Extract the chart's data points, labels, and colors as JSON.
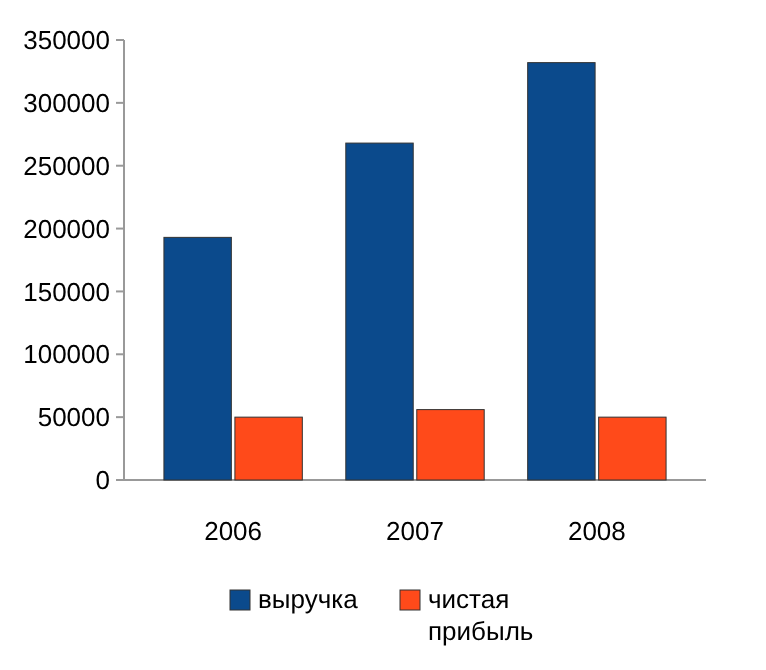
{
  "chart_data": {
    "type": "bar",
    "categories": [
      "2006",
      "2007",
      "2008"
    ],
    "series": [
      {
        "name": "выручка",
        "color": "#0b4a8c",
        "values": [
          193000,
          268000,
          332000
        ]
      },
      {
        "name": "чистая прибыль",
        "color": "#ff4a1a",
        "values": [
          50000,
          56000,
          50000
        ]
      }
    ],
    "ylim": [
      0,
      350000
    ],
    "yticks": [
      0,
      50000,
      100000,
      150000,
      200000,
      250000,
      300000,
      350000
    ],
    "grid": false,
    "legend": "bottom"
  }
}
